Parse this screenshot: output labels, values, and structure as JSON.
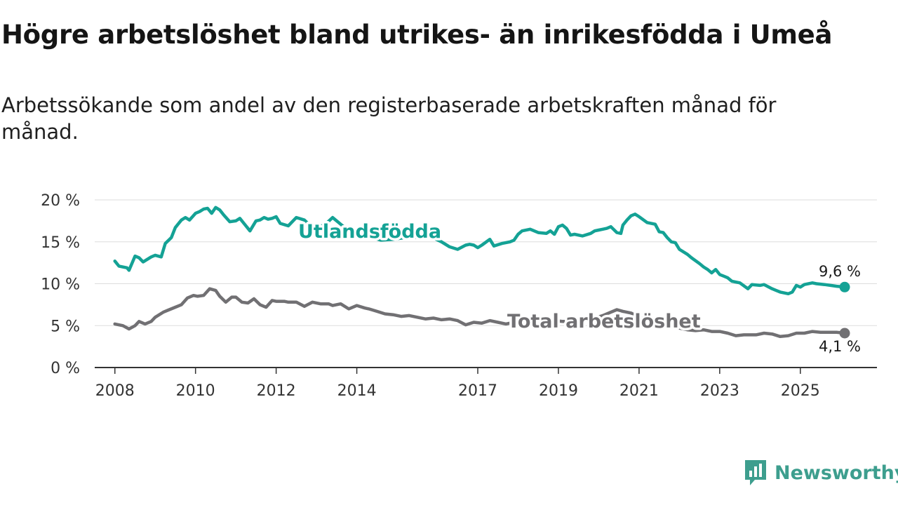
{
  "header": {
    "title": "Högre arbetslöshet bland utrikes- än inrikesfödda i Umeå",
    "subtitle": "Arbetssökande som andel av den registerbaserade arbetskraften månad för månad."
  },
  "brand": {
    "name": "Newsworthy"
  },
  "colors": {
    "foreign": "#14a295",
    "total": "#717073",
    "grid": "#dddddd",
    "axis": "#333333",
    "logo": "#3d9e8e"
  },
  "chart_data": {
    "type": "line",
    "title": "Högre arbetslöshet bland utrikes- än inrikesfödda i Umeå",
    "ylabel": "",
    "xlabel": "",
    "ylim": [
      0,
      20
    ],
    "xlim": [
      2007.5,
      2026.9
    ],
    "yticks": [
      0,
      5,
      10,
      15,
      20
    ],
    "ytick_labels": [
      "0 %",
      "5 %",
      "10 %",
      "15 %",
      "20 %"
    ],
    "xticks": [
      2008,
      2010,
      2012,
      2014,
      2017,
      2019,
      2021,
      2023,
      2025
    ],
    "xtick_labels": [
      "2008",
      "2010",
      "2012",
      "2014",
      "2017",
      "2019",
      "2021",
      "2023",
      "2025"
    ],
    "grid": "horizontal",
    "series": [
      {
        "name": "Utlandsfödda",
        "label": "Utlandsfödda",
        "end_label": "9,6 %",
        "x": [
          2008.0,
          2008.1,
          2008.3,
          2008.35,
          2008.5,
          2008.6,
          2008.7,
          2008.9,
          2009.0,
          2009.15,
          2009.25,
          2009.4,
          2009.5,
          2009.65,
          2009.75,
          2009.85,
          2010.0,
          2010.1,
          2010.2,
          2010.3,
          2010.4,
          2010.5,
          2010.6,
          2010.7,
          2010.85,
          2011.0,
          2011.1,
          2011.2,
          2011.35,
          2011.5,
          2011.6,
          2011.7,
          2011.8,
          2011.9,
          2012.0,
          2012.1,
          2012.3,
          2012.5,
          2012.7,
          2012.85,
          2013.0,
          2013.2,
          2013.4,
          2013.6,
          2013.8,
          2014.0,
          2014.3,
          2014.6,
          2014.9,
          2015.2,
          2015.5,
          2015.8,
          2016.1,
          2016.3,
          2016.5,
          2016.7,
          2016.8,
          2016.9,
          2017.0,
          2017.1,
          2017.3,
          2017.4,
          2017.6,
          2017.8,
          2017.9,
          2018.0,
          2018.1,
          2018.3,
          2018.5,
          2018.7,
          2018.8,
          2018.9,
          2019.0,
          2019.1,
          2019.2,
          2019.3,
          2019.4,
          2019.6,
          2019.8,
          2019.9,
          2020.0,
          2020.1,
          2020.2,
          2020.3,
          2020.45,
          2020.55,
          2020.6,
          2020.7,
          2020.8,
          2020.9,
          2021.0,
          2021.2,
          2021.4,
          2021.5,
          2021.6,
          2021.7,
          2021.8,
          2021.9,
          2022.0,
          2022.2,
          2022.3,
          2022.5,
          2022.6,
          2022.7,
          2022.8,
          2022.9,
          2023.0,
          2023.1,
          2023.2,
          2023.3,
          2023.5,
          2023.7,
          2023.8,
          2024.0,
          2024.1,
          2024.3,
          2024.4,
          2024.5,
          2024.7,
          2024.8,
          2024.9,
          2025.0,
          2025.1,
          2025.3,
          2025.4,
          2025.6,
          2025.75,
          2025.9,
          2026.1
        ],
        "values": [
          12.7,
          12.1,
          11.9,
          11.6,
          13.3,
          13.1,
          12.6,
          13.2,
          13.4,
          13.2,
          14.8,
          15.5,
          16.7,
          17.6,
          17.9,
          17.6,
          18.4,
          18.6,
          18.9,
          19.0,
          18.4,
          19.1,
          18.8,
          18.2,
          17.4,
          17.5,
          17.8,
          17.2,
          16.3,
          17.5,
          17.6,
          17.9,
          17.7,
          17.8,
          18.0,
          17.2,
          16.9,
          17.9,
          17.6,
          16.9,
          16.8,
          17.0,
          17.9,
          17.1,
          16.3,
          15.9,
          15.6,
          15.2,
          15.3,
          15.5,
          15.5,
          15.7,
          15.0,
          14.4,
          14.1,
          14.6,
          14.7,
          14.6,
          14.3,
          14.6,
          15.3,
          14.5,
          14.8,
          15.0,
          15.2,
          15.9,
          16.3,
          16.5,
          16.1,
          16.0,
          16.3,
          15.9,
          16.8,
          17.0,
          16.6,
          15.8,
          15.9,
          15.7,
          16.0,
          16.3,
          16.4,
          16.5,
          16.6,
          16.8,
          16.1,
          16.0,
          17.0,
          17.6,
          18.1,
          18.3,
          18.0,
          17.3,
          17.1,
          16.2,
          16.1,
          15.5,
          15.0,
          14.9,
          14.1,
          13.5,
          13.1,
          12.4,
          12.0,
          11.7,
          11.3,
          11.7,
          11.1,
          10.9,
          10.7,
          10.3,
          10.1,
          9.4,
          9.9,
          9.8,
          9.9,
          9.4,
          9.2,
          9.0,
          8.8,
          9.0,
          9.8,
          9.6,
          9.9,
          10.1,
          10.0,
          9.9,
          9.8,
          9.7,
          9.6
        ]
      },
      {
        "name": "Total arbetslöshet",
        "label": "Total arbetslöshet",
        "end_label": "4,1 %",
        "x": [
          2008.0,
          2008.2,
          2008.35,
          2008.5,
          2008.6,
          2008.75,
          2008.9,
          2009.0,
          2009.2,
          2009.35,
          2009.5,
          2009.65,
          2009.8,
          2009.95,
          2010.05,
          2010.2,
          2010.35,
          2010.5,
          2010.6,
          2010.75,
          2010.9,
          2011.0,
          2011.15,
          2011.3,
          2011.45,
          2011.6,
          2011.75,
          2011.9,
          2012.0,
          2012.2,
          2012.3,
          2012.5,
          2012.7,
          2012.9,
          2013.1,
          2013.3,
          2013.4,
          2013.6,
          2013.8,
          2014.0,
          2014.2,
          2014.3,
          2014.5,
          2014.7,
          2014.9,
          2015.1,
          2015.3,
          2015.5,
          2015.7,
          2015.9,
          2016.1,
          2016.3,
          2016.5,
          2016.7,
          2016.9,
          2017.1,
          2017.3,
          2017.5,
          2017.7,
          2017.9,
          2018.1,
          2018.3,
          2018.5,
          2018.7,
          2018.9,
          2019.1,
          2019.3,
          2019.5,
          2019.7,
          2019.9,
          2020.1,
          2020.3,
          2020.45,
          2020.6,
          2020.8,
          2021.0,
          2021.2,
          2021.4,
          2021.6,
          2021.8,
          2022.0,
          2022.2,
          2022.4,
          2022.6,
          2022.8,
          2023.0,
          2023.2,
          2023.4,
          2023.6,
          2023.8,
          2023.9,
          2024.1,
          2024.3,
          2024.5,
          2024.7,
          2024.9,
          2025.1,
          2025.3,
          2025.5,
          2025.7,
          2025.9,
          2026.1
        ],
        "values": [
          5.2,
          5.0,
          4.6,
          5.0,
          5.5,
          5.2,
          5.5,
          6.0,
          6.6,
          6.9,
          7.2,
          7.5,
          8.3,
          8.6,
          8.5,
          8.6,
          9.4,
          9.2,
          8.5,
          7.8,
          8.4,
          8.4,
          7.8,
          7.7,
          8.2,
          7.5,
          7.2,
          8.0,
          7.9,
          7.9,
          7.8,
          7.8,
          7.3,
          7.8,
          7.6,
          7.6,
          7.4,
          7.6,
          7.0,
          7.4,
          7.1,
          7.0,
          6.7,
          6.4,
          6.3,
          6.1,
          6.2,
          6.0,
          5.8,
          5.9,
          5.7,
          5.8,
          5.6,
          5.1,
          5.4,
          5.3,
          5.6,
          5.4,
          5.2,
          5.4,
          5.6,
          5.5,
          5.6,
          5.7,
          5.6,
          5.5,
          5.5,
          5.6,
          5.8,
          5.9,
          6.2,
          6.6,
          6.9,
          6.7,
          6.5,
          6.0,
          5.7,
          5.5,
          5.2,
          5.0,
          4.7,
          4.5,
          4.4,
          4.5,
          4.3,
          4.3,
          4.1,
          3.8,
          3.9,
          3.9,
          3.9,
          4.1,
          4.0,
          3.7,
          3.8,
          4.1,
          4.1,
          4.3,
          4.2,
          4.2,
          4.2,
          4.1
        ]
      }
    ]
  }
}
